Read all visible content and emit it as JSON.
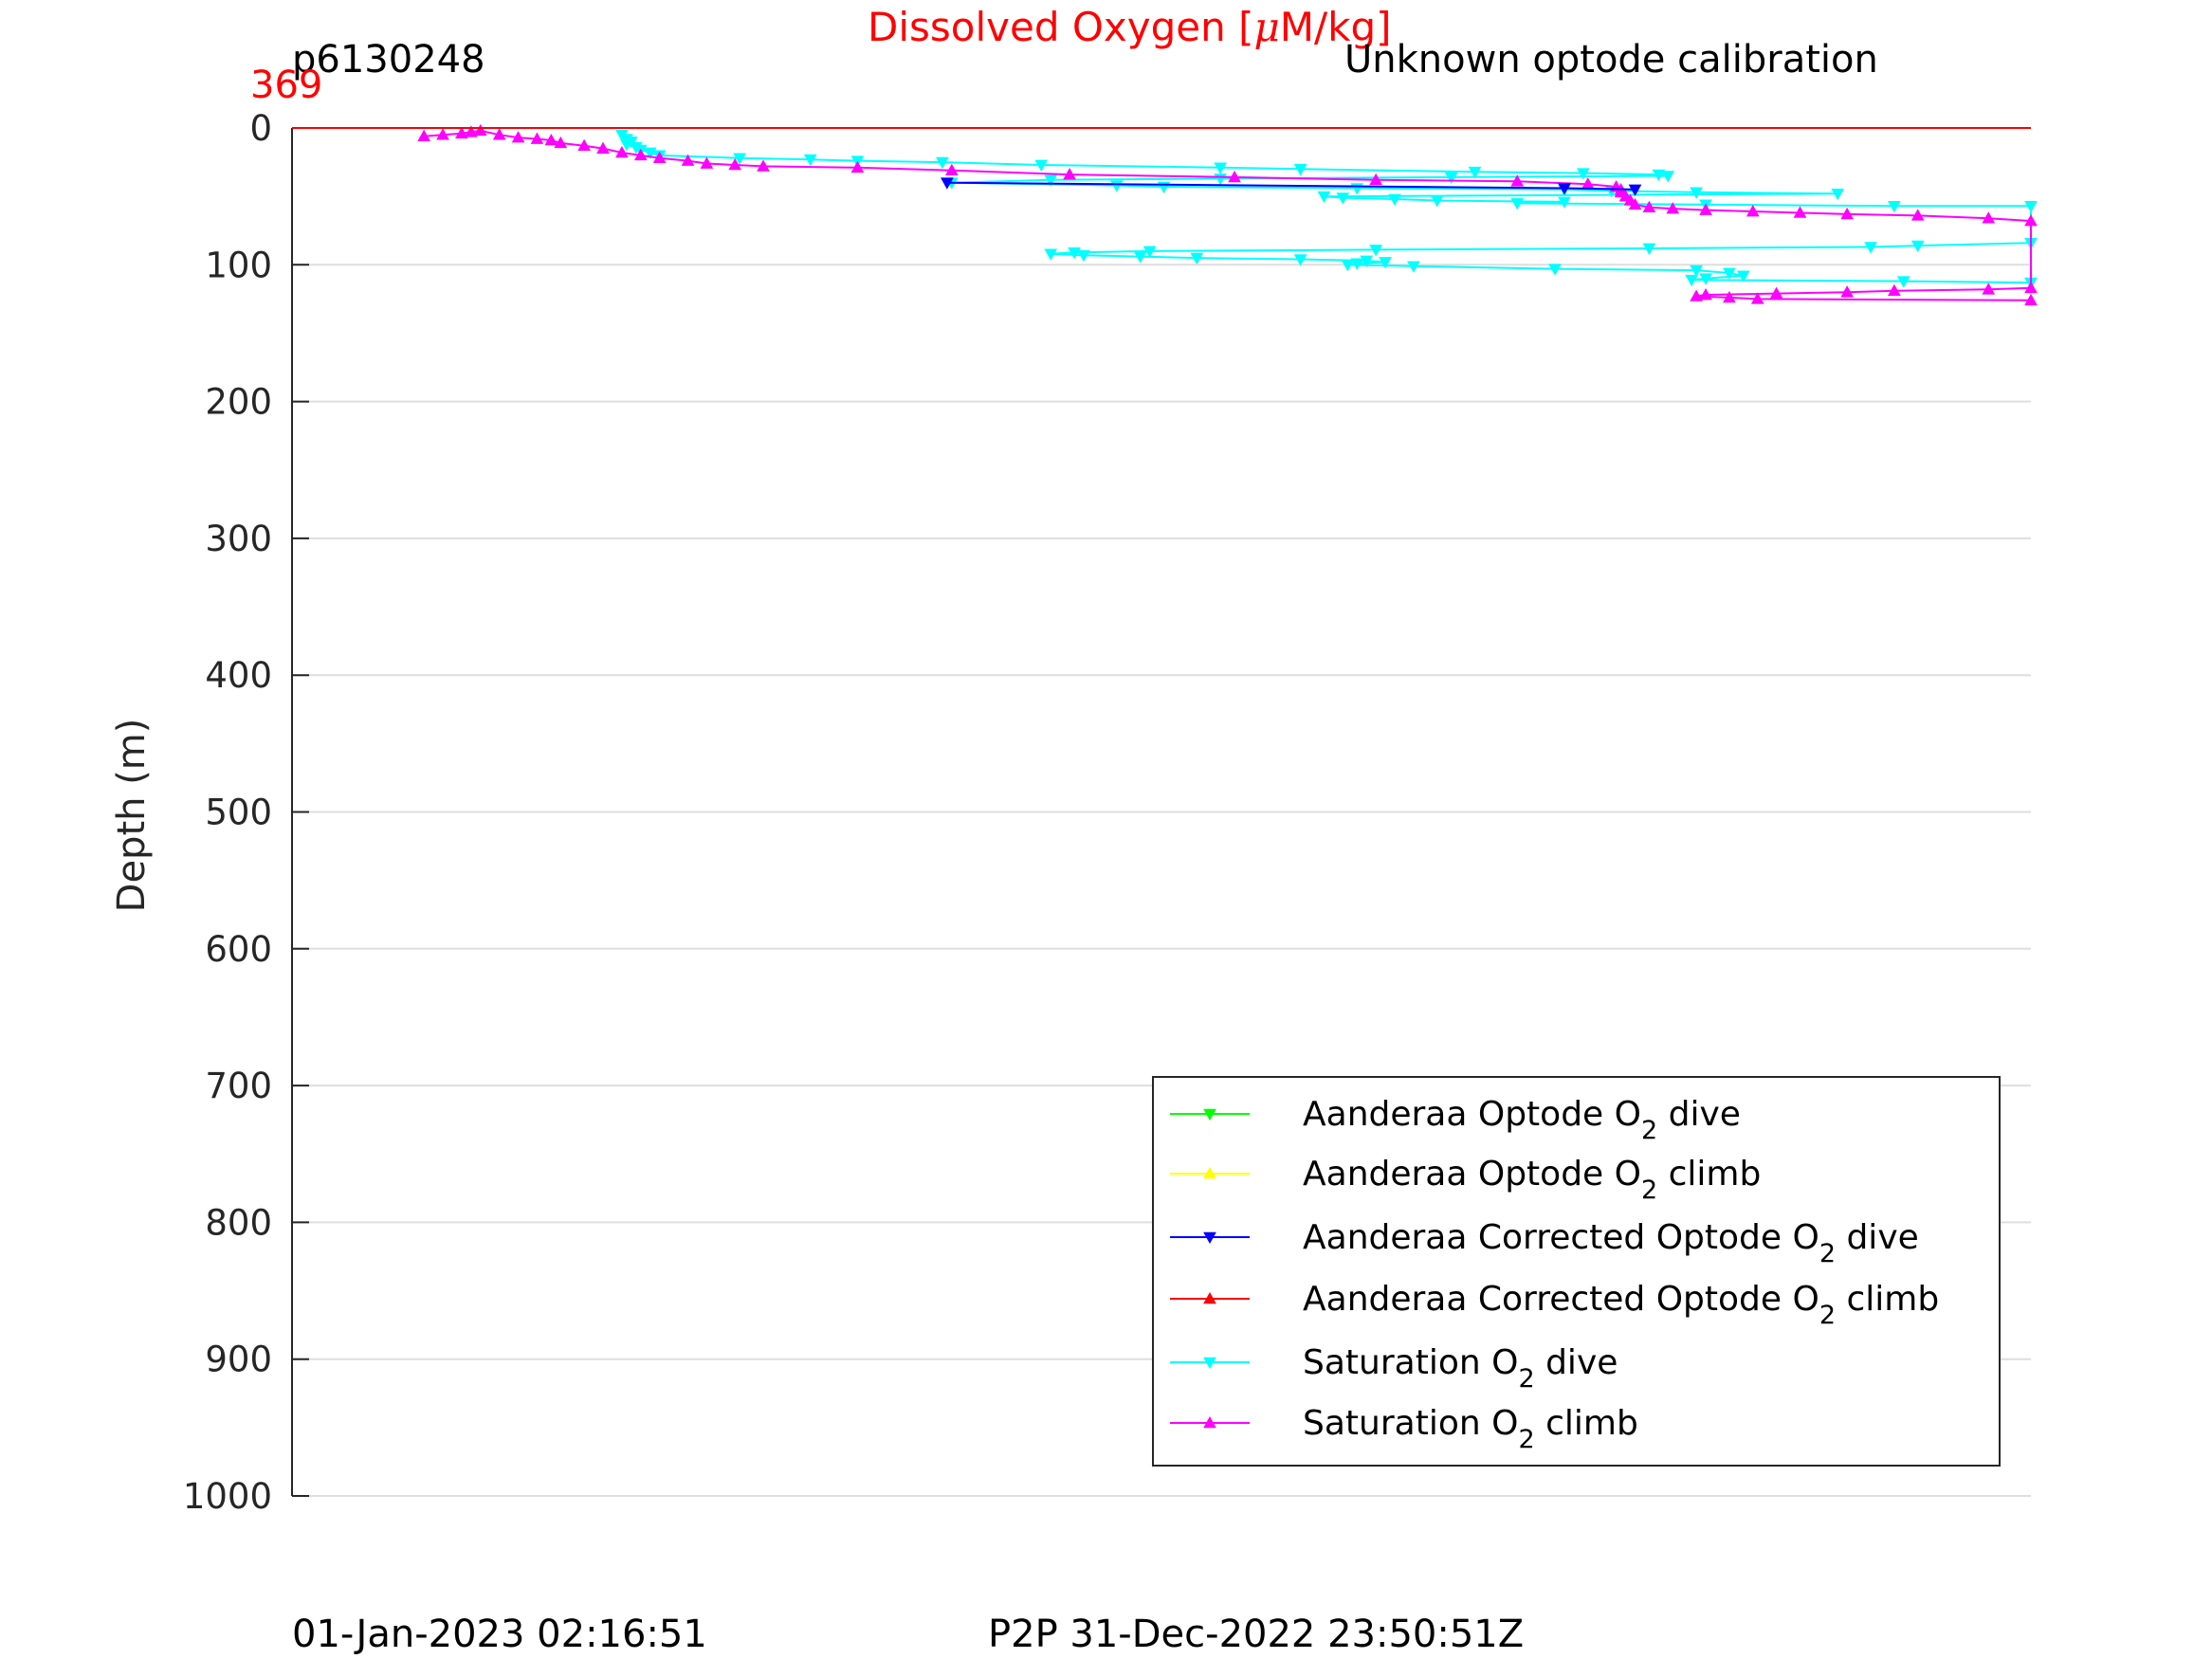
{
  "page": {
    "title": "Dissolved Oxygen [",
    "title_mu": "μ",
    "title_units": "M/kg]",
    "title_color": "#ff0000",
    "glider_id": "p6130248",
    "calibration_note": "Unknown optode calibration",
    "top_value_label": "369",
    "top_value_color": "#ff0000",
    "footer_left": "01-Jan-2023 02:16:51",
    "footer_center": "P2P 31-Dec-2022 23:50:51Z"
  },
  "chart_data": {
    "type": "line",
    "title": "Dissolved Oxygen [μM/kg]",
    "ylabel": "Depth (m)",
    "xlabel": "",
    "ylim": [
      0,
      1000
    ],
    "y_reversed": true,
    "xlim": [
      0,
      369
    ],
    "x_axis_labels_shown": false,
    "yticks": [
      0,
      100,
      200,
      300,
      400,
      500,
      600,
      700,
      800,
      900,
      1000
    ],
    "ytick_labels": [
      "0",
      "100",
      "200",
      "300",
      "400",
      "500",
      "600",
      "700",
      "800",
      "900",
      "1000"
    ],
    "grid": "horizontal",
    "legend_position": "bottom-right",
    "series": [
      {
        "name": "Aanderaa Optode O",
        "sub": "2",
        "suffix": " dive",
        "color": "#00ff00",
        "marker": "down",
        "points": []
      },
      {
        "name": "Aanderaa Optode O",
        "sub": "2",
        "suffix": " climb",
        "color": "#ffff00",
        "marker": "up",
        "points": []
      },
      {
        "name": "Aanderaa Corrected Optode O",
        "sub": "2",
        "suffix": " dive",
        "color": "#0000ff",
        "marker": "down",
        "points": [
          [
            139,
            40
          ],
          [
            270,
            44
          ],
          [
            285,
            45
          ]
        ]
      },
      {
        "name": "Aanderaa Corrected Optode O",
        "sub": "2",
        "suffix": " climb",
        "color": "#ff0000",
        "marker": "up",
        "points": [
          [
            0,
            0
          ],
          [
            369,
            0
          ]
        ]
      },
      {
        "name": "Saturation O",
        "sub": "2",
        "suffix": " dive",
        "color": "#00ffff",
        "marker": "down",
        "points": [
          [
            70,
            5
          ],
          [
            71,
            8
          ],
          [
            72,
            10
          ],
          [
            71,
            12
          ],
          [
            73,
            14
          ],
          [
            74,
            16
          ],
          [
            76,
            18
          ],
          [
            78,
            20
          ],
          [
            95,
            22
          ],
          [
            110,
            23
          ],
          [
            120,
            24
          ],
          [
            138,
            25
          ],
          [
            159,
            27
          ],
          [
            197,
            29
          ],
          [
            214,
            30
          ],
          [
            251,
            32
          ],
          [
            274,
            33
          ],
          [
            290,
            34
          ],
          [
            292,
            35
          ],
          [
            246,
            36
          ],
          [
            197,
            37
          ],
          [
            161,
            38
          ],
          [
            140,
            40
          ],
          [
            175,
            42
          ],
          [
            185,
            43
          ],
          [
            226,
            44
          ],
          [
            270,
            45
          ],
          [
            280,
            46
          ],
          [
            298,
            47
          ],
          [
            328,
            48
          ],
          [
            219,
            50
          ],
          [
            223,
            51
          ],
          [
            234,
            52
          ],
          [
            243,
            53
          ],
          [
            270,
            54
          ],
          [
            260,
            55
          ],
          [
            300,
            56
          ],
          [
            340,
            57
          ],
          [
            369,
            57
          ],
          [
            369,
            84
          ],
          [
            345,
            86
          ],
          [
            335,
            87
          ],
          [
            288,
            88
          ],
          [
            230,
            89
          ],
          [
            182,
            90
          ],
          [
            166,
            91
          ],
          [
            161,
            92
          ],
          [
            168,
            93
          ],
          [
            180,
            94
          ],
          [
            192,
            95
          ],
          [
            214,
            96
          ],
          [
            228,
            97
          ],
          [
            232,
            98
          ],
          [
            226,
            99
          ],
          [
            224,
            100
          ],
          [
            238,
            101
          ],
          [
            268,
            103
          ],
          [
            298,
            104
          ],
          [
            305,
            106
          ],
          [
            308,
            108
          ],
          [
            300,
            110
          ],
          [
            297,
            111
          ],
          [
            342,
            112
          ],
          [
            369,
            113
          ]
        ]
      },
      {
        "name": "Saturation O",
        "sub": "2",
        "suffix": " climb",
        "color": "#ff00ff",
        "marker": "up",
        "points": [
          [
            28,
            6
          ],
          [
            32,
            5
          ],
          [
            36,
            4
          ],
          [
            38,
            3
          ],
          [
            40,
            2
          ],
          [
            44,
            5
          ],
          [
            48,
            7
          ],
          [
            52,
            8
          ],
          [
            55,
            9
          ],
          [
            57,
            11
          ],
          [
            62,
            13
          ],
          [
            66,
            15
          ],
          [
            70,
            18
          ],
          [
            74,
            20
          ],
          [
            78,
            22
          ],
          [
            84,
            24
          ],
          [
            88,
            26
          ],
          [
            94,
            27
          ],
          [
            100,
            28
          ],
          [
            120,
            29
          ],
          [
            140,
            31
          ],
          [
            165,
            34
          ],
          [
            200,
            36
          ],
          [
            230,
            38
          ],
          [
            260,
            39
          ],
          [
            275,
            41
          ],
          [
            281,
            43
          ],
          [
            282,
            45
          ],
          [
            282,
            47
          ],
          [
            283,
            50
          ],
          [
            284,
            53
          ],
          [
            285,
            56
          ],
          [
            288,
            58
          ],
          [
            293,
            59
          ],
          [
            300,
            60
          ],
          [
            310,
            61
          ],
          [
            320,
            62
          ],
          [
            330,
            63
          ],
          [
            345,
            64
          ],
          [
            360,
            66
          ],
          [
            369,
            68
          ],
          [
            369,
            117
          ],
          [
            360,
            118
          ],
          [
            340,
            119
          ],
          [
            330,
            120
          ],
          [
            315,
            121
          ],
          [
            300,
            122
          ],
          [
            298,
            123
          ],
          [
            305,
            124
          ],
          [
            311,
            125
          ],
          [
            369,
            126
          ]
        ]
      }
    ]
  }
}
